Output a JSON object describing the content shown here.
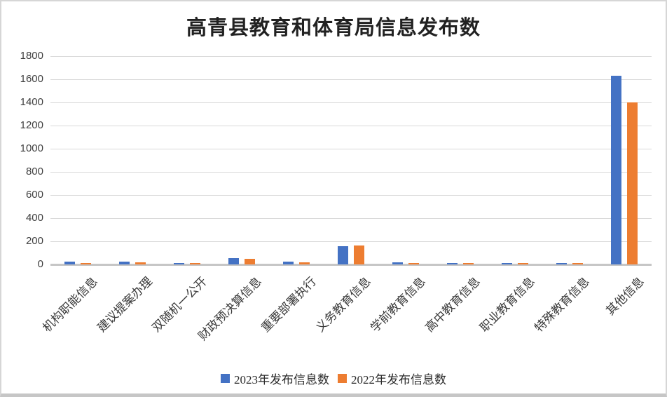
{
  "page": {
    "background": "#ffffff",
    "border_color": "#d6d6d6",
    "bottom_strip_color": "#c6c6c6"
  },
  "chart_data": {
    "type": "bar",
    "title": "高青县教育和体育局信息发布数",
    "categories": [
      "机构职能信息",
      "建议提案办理",
      "双随机一公开",
      "财政预决算信息",
      "重要部署执行",
      "义务教育信息",
      "学前教育信息",
      "高中教育信息",
      "职业教育信息",
      "特殊教育信息",
      "其他信息"
    ],
    "series": [
      {
        "name": "2023年发布信息数",
        "color": "#4472C4",
        "values": [
          22,
          24,
          15,
          55,
          22,
          160,
          20,
          12,
          14,
          12,
          1630
        ]
      },
      {
        "name": "2022年发布信息数",
        "color": "#ED7D31",
        "values": [
          12,
          20,
          13,
          50,
          20,
          165,
          10,
          12,
          12,
          10,
          1400
        ]
      }
    ],
    "xlabel": "",
    "ylabel": "",
    "ylim": [
      0,
      1800
    ],
    "yticks": [
      0,
      200,
      400,
      600,
      800,
      1000,
      1200,
      1400,
      1600,
      1800
    ],
    "grid": true,
    "legend_position": "bottom",
    "gridline_color": "#d9d9d9",
    "axis_line_color": "#c6c6c6",
    "tick_label_color": "#3f3f3f"
  }
}
